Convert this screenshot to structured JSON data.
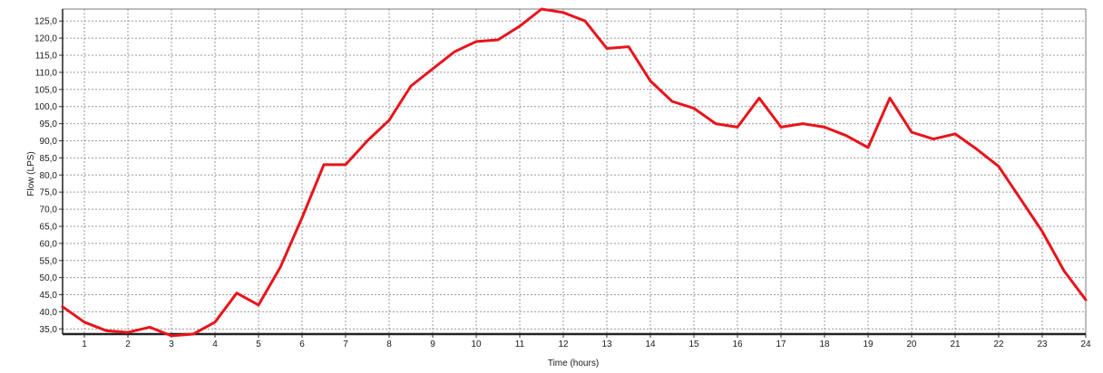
{
  "chart_data": {
    "type": "line",
    "xlabel": "Time (hours)",
    "ylabel": "Flow (LPS)",
    "xlim": [
      0.5,
      24
    ],
    "ylim": [
      33.5,
      128.5
    ],
    "x_ticks": [
      1,
      2,
      3,
      4,
      5,
      6,
      7,
      8,
      9,
      10,
      11,
      12,
      13,
      14,
      15,
      16,
      17,
      18,
      19,
      20,
      21,
      22,
      23,
      24
    ],
    "y_ticks": [
      35.0,
      40.0,
      45.0,
      50.0,
      55.0,
      60.0,
      65.0,
      70.0,
      75.0,
      80.0,
      85.0,
      90.0,
      95.0,
      100.0,
      105.0,
      110.0,
      115.0,
      120.0,
      125.0
    ],
    "y_tick_labels": [
      "35,0",
      "40,0",
      "45,0",
      "50,0",
      "55,0",
      "60,0",
      "65,0",
      "70,0",
      "75,0",
      "80,0",
      "85,0",
      "90,0",
      "95,0",
      "100,0",
      "105,0",
      "110,0",
      "115,0",
      "120,0",
      "125,0"
    ],
    "grid": true,
    "series": [
      {
        "color": "#e8141c",
        "x": [
          0.5,
          1,
          1.5,
          2,
          2.5,
          3,
          3.5,
          4,
          4.5,
          5,
          5.5,
          6,
          6.5,
          7,
          7.5,
          8,
          8.5,
          9,
          9.5,
          10,
          10.5,
          11,
          11.5,
          12,
          12.5,
          13,
          13.5,
          14,
          14.5,
          15,
          15.5,
          16,
          16.5,
          17,
          17.5,
          18,
          18.5,
          19,
          19.5,
          20,
          20.5,
          21,
          21.5,
          22,
          22.5,
          23,
          23.5,
          24
        ],
        "values": [
          41.5,
          37.0,
          34.5,
          34.0,
          35.5,
          33.0,
          33.5,
          37.0,
          45.5,
          42.0,
          53.0,
          67.5,
          83.0,
          83.0,
          90.0,
          96.0,
          106.0,
          111.0,
          116.0,
          119.0,
          119.5,
          123.5,
          128.5,
          127.5,
          125.0,
          117.0,
          117.5,
          107.5,
          101.5,
          99.5,
          95.0,
          94.0,
          102.5,
          94.0,
          95.0,
          94.0,
          91.5,
          88.0,
          102.5,
          92.5,
          90.5,
          92.0,
          87.5,
          82.5,
          73.0,
          63.5,
          52.0,
          43.5
        ]
      }
    ]
  }
}
